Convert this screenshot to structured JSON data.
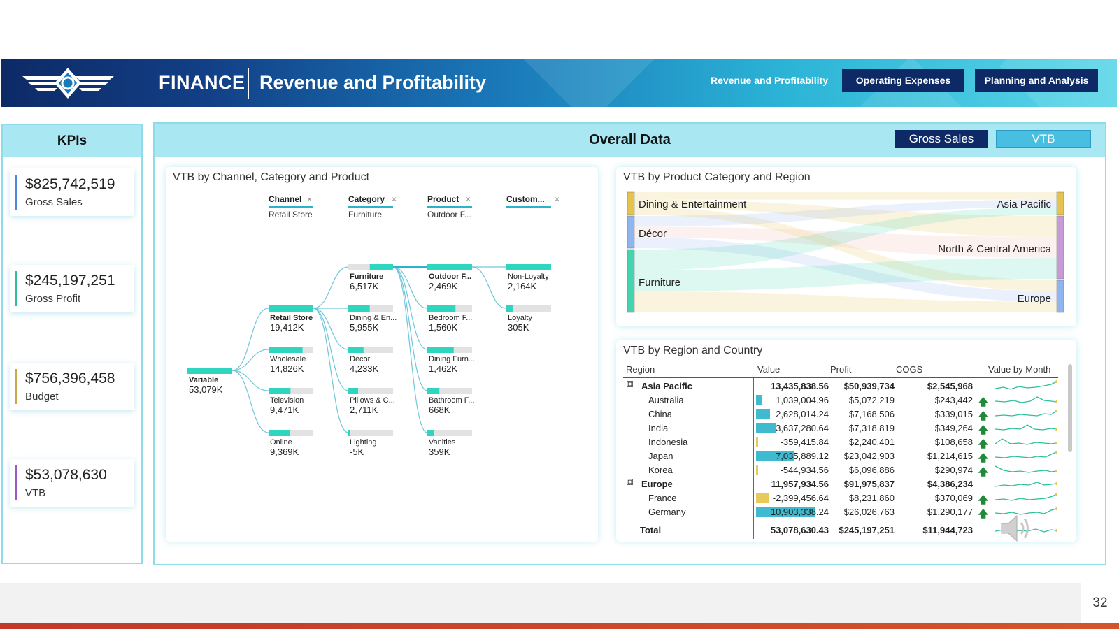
{
  "header": {
    "brand": "FINANCE",
    "title": "Revenue and Profitability",
    "nav": [
      {
        "label": "Revenue and Profitability",
        "active": true
      },
      {
        "label": "Operating Expenses",
        "active": false
      },
      {
        "label": "Planning and Analysis",
        "active": false
      }
    ]
  },
  "kpis": {
    "title": "KPIs",
    "items": [
      {
        "value": "$825,742,519",
        "label": "Gross Sales",
        "color": "#4a89dc"
      },
      {
        "value": "$245,197,251",
        "label": "Gross Profit",
        "color": "#2bbf9a"
      },
      {
        "value": "$756,396,458",
        "label": "Budget",
        "color": "#c9a94a"
      },
      {
        "value": "$53,078,630",
        "label": "VTB",
        "color": "#9b59c6"
      }
    ]
  },
  "main": {
    "title": "Overall Data",
    "toggles": {
      "gross": "Gross Sales",
      "vtb": "VTB"
    }
  },
  "tree": {
    "title": "VTB by Channel, Category and Product",
    "levels": [
      {
        "name": "Channel",
        "filter": "Retail Store"
      },
      {
        "name": "Category",
        "filter": "Furniture"
      },
      {
        "name": "Product",
        "filter": "Outdoor F..."
      },
      {
        "name": "Custom...",
        "filter": ""
      }
    ],
    "root": {
      "label": "Variable",
      "value": "53,079K",
      "fraction": 1.0
    },
    "channel": [
      {
        "label": "Retail Store",
        "value": "19,412K",
        "fraction": 1.0,
        "selected": true
      },
      {
        "label": "Wholesale",
        "value": "14,826K",
        "fraction": 0.76
      },
      {
        "label": "Television",
        "value": "9,471K",
        "fraction": 0.49
      },
      {
        "label": "Online",
        "value": "9,369K",
        "fraction": 0.48
      }
    ],
    "category": [
      {
        "label": "Furniture",
        "value": "6,517K",
        "fraction": 0.52,
        "selected": true
      },
      {
        "label": "Dining & En...",
        "value": "5,955K",
        "fraction": 0.48
      },
      {
        "label": "Décor",
        "value": "4,233K",
        "fraction": 0.34
      },
      {
        "label": "Pillows & C...",
        "value": "2,711K",
        "fraction": 0.22
      },
      {
        "label": "Lighting",
        "value": "-5K",
        "fraction": 0.01
      }
    ],
    "product": [
      {
        "label": "Outdoor F...",
        "value": "2,469K",
        "fraction": 1.0,
        "selected": true
      },
      {
        "label": "Bedroom F...",
        "value": "1,560K",
        "fraction": 0.63
      },
      {
        "label": "Dining Furn...",
        "value": "1,462K",
        "fraction": 0.59
      },
      {
        "label": "Bathroom F...",
        "value": "668K",
        "fraction": 0.27
      },
      {
        "label": "Vanities",
        "value": "359K",
        "fraction": 0.15
      }
    ],
    "customer": [
      {
        "label": "Non-Loyalty",
        "value": "2,164K",
        "fraction": 1.0
      },
      {
        "label": "Loyalty",
        "value": "305K",
        "fraction": 0.14
      }
    ]
  },
  "sankey": {
    "title": "VTB by Product Category and Region",
    "left": [
      {
        "label": "Dining & Entertainment",
        "color": "#e6c34a"
      },
      {
        "label": "Décor",
        "color": "#8fb4f0"
      },
      {
        "label": "Furniture",
        "color": "#44d4b0"
      }
    ],
    "right": [
      {
        "label": "Asia Pacific",
        "color": "#e6c34a"
      },
      {
        "label": "North & Central America",
        "color": "#c79bd6"
      },
      {
        "label": "Europe",
        "color": "#8fb4f0"
      }
    ]
  },
  "table": {
    "title": "VTB by Region and Country",
    "headers": {
      "region": "Region",
      "value": "Value",
      "profit": "Profit",
      "cogs": "COGS",
      "month": "Value by Month"
    },
    "rows": [
      {
        "name": "Asia Pacific",
        "value": "13,435,838.56",
        "profit": "$50,939,734",
        "cogs": "$2,545,968",
        "level": 0,
        "expander": "⊟"
      },
      {
        "name": "Australia",
        "value": "1,039,004.96",
        "profit": "$5,072,219",
        "cogs": "$243,442",
        "level": 1,
        "bar": 0.04,
        "bar_color": "#2bb3c9",
        "arrow": "🡅"
      },
      {
        "name": "China",
        "value": "2,628,014.24",
        "profit": "$7,168,506",
        "cogs": "$339,015",
        "level": 1,
        "bar": 0.1,
        "bar_color": "#2bb3c9",
        "arrow": "🡅"
      },
      {
        "name": "India",
        "value": "3,637,280.64",
        "profit": "$7,318,819",
        "cogs": "$349,264",
        "level": 1,
        "bar": 0.14,
        "bar_color": "#2bb3c9",
        "arrow": "🡅"
      },
      {
        "name": "Indonesia",
        "value": "-359,415.84",
        "profit": "$2,240,401",
        "cogs": "$108,658",
        "level": 1,
        "bar": 0.01,
        "bar_color": "#e6c34a",
        "arrow": "🡅"
      },
      {
        "name": "Japan",
        "value": "7,035,889.12",
        "profit": "$23,042,903",
        "cogs": "$1,214,615",
        "level": 1,
        "bar": 0.27,
        "bar_color": "#2bb3c9",
        "arrow": "🡅"
      },
      {
        "name": "Korea",
        "value": "-544,934.56",
        "profit": "$6,096,886",
        "cogs": "$290,974",
        "level": 1,
        "bar": 0.01,
        "bar_color": "#e6c34a",
        "arrow": "🡅"
      },
      {
        "name": "Europe",
        "value": "11,957,934.56",
        "profit": "$91,975,837",
        "cogs": "$4,386,234",
        "level": 0,
        "expander": "⊟"
      },
      {
        "name": "France",
        "value": "-2,399,456.64",
        "profit": "$8,231,860",
        "cogs": "$370,069",
        "level": 1,
        "bar": 0.09,
        "bar_color": "#e6c34a",
        "arrow": "🡅"
      },
      {
        "name": "Germany",
        "value": "10,903,338.24",
        "profit": "$26,026,763",
        "cogs": "$1,290,177",
        "level": 1,
        "bar": 0.42,
        "bar_color": "#2bb3c9",
        "arrow": "🡅"
      }
    ],
    "total": {
      "name": "Total",
      "value": "53,078,630.43",
      "profit": "$245,197,251",
      "cogs": "$11,944,723"
    }
  },
  "footer": {
    "page_number": "32"
  }
}
